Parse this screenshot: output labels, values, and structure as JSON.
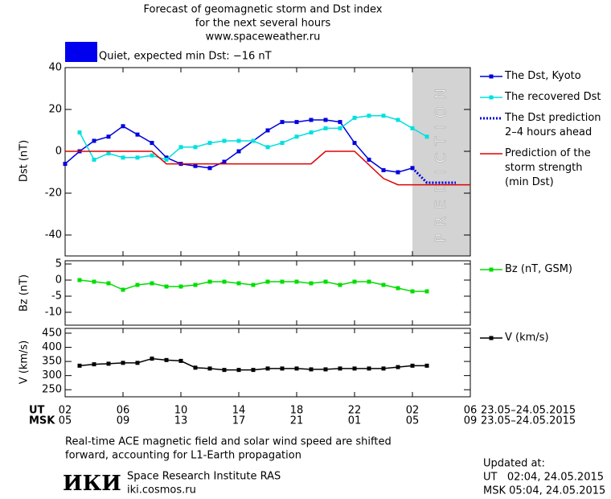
{
  "header": {
    "title": [
      "Forecast of geomagnetic storm and Dst index",
      "for the next several hours",
      "www.spaceweather.ru"
    ],
    "status": "Quiet, expected min Dst: −16 nT",
    "status_color": "#0000ee"
  },
  "chart_data": [
    {
      "type": "line",
      "ylabel": "Dst (nT)",
      "xlim": [
        0,
        28
      ],
      "ylim": [
        -50,
        40
      ],
      "yticks": [
        -40,
        -20,
        0,
        20,
        40
      ],
      "prediction_zone": {
        "xlim": [
          24,
          28
        ],
        "label": "PREDICTION",
        "color": "#d3d3d3"
      },
      "series": [
        {
          "name": "The Dst, Kyoto",
          "color": "#0000dd",
          "marker": "square",
          "x": [
            0,
            1,
            2,
            3,
            4,
            5,
            6,
            7,
            8,
            9,
            10,
            11,
            12,
            13,
            14,
            15,
            16,
            17,
            18,
            19,
            20,
            21,
            22,
            23,
            24
          ],
          "values": [
            -6,
            0,
            5,
            7,
            12,
            8,
            4,
            -3,
            -6,
            -7,
            -8,
            -5,
            0,
            5,
            10,
            14,
            14,
            15,
            15,
            14,
            4,
            -4,
            -9,
            -10,
            -8
          ]
        },
        {
          "name": "The recovered Dst",
          "color": "#00e0e0",
          "marker": "square",
          "x": [
            1,
            2,
            3,
            4,
            5,
            6,
            7,
            8,
            9,
            10,
            11,
            12,
            13,
            14,
            15,
            16,
            17,
            18,
            19,
            20,
            21,
            22,
            23,
            24,
            25
          ],
          "values": [
            9,
            -4,
            -1,
            -3,
            -3,
            -2,
            -4,
            2,
            2,
            4,
            5,
            5,
            5,
            2,
            4,
            7,
            9,
            11,
            11,
            16,
            17,
            17,
            15,
            11,
            7
          ]
        },
        {
          "name": "The Dst prediction\n2–4 hours ahead",
          "color": "#0000dd",
          "dash": "dotted",
          "x": [
            24,
            25,
            26,
            27
          ],
          "values": [
            -8,
            -15,
            -15,
            -15
          ]
        },
        {
          "name": "Prediction of the\nstorm strength\n(min Dst)",
          "color": "#e00000",
          "x": [
            0,
            6,
            7,
            17,
            18,
            20,
            22,
            23,
            28
          ],
          "values": [
            0,
            0,
            -6,
            -6,
            0,
            0,
            -13,
            -16,
            -16
          ]
        }
      ]
    },
    {
      "type": "line",
      "ylabel": "Bz (nT)",
      "xlim": [
        0,
        28
      ],
      "ylim": [
        -14,
        6
      ],
      "yticks": [
        -10,
        -5,
        0,
        5
      ],
      "series": [
        {
          "name": "Bz (nT, GSM)",
          "color": "#00dd00",
          "marker": "square",
          "x": [
            1,
            2,
            3,
            4,
            5,
            6,
            7,
            8,
            9,
            10,
            11,
            12,
            13,
            14,
            15,
            16,
            17,
            18,
            19,
            20,
            21,
            22,
            23,
            24,
            25
          ],
          "values": [
            0,
            -0.5,
            -1,
            -3,
            -1.5,
            -1,
            -2,
            -2,
            -1.5,
            -0.5,
            -0.5,
            -1,
            -1.5,
            -0.5,
            -0.5,
            -0.5,
            -1,
            -0.5,
            -1.5,
            -0.5,
            -0.5,
            -1.5,
            -2.5,
            -3.5,
            -3.5
          ]
        }
      ]
    },
    {
      "type": "line",
      "ylabel": "V (km/s)",
      "xlim": [
        0,
        28
      ],
      "ylim": [
        225,
        467
      ],
      "yticks": [
        250,
        300,
        350,
        400,
        450
      ],
      "xticks": [
        {
          "value": 0,
          "label": "02"
        },
        {
          "value": 4,
          "label": "06"
        },
        {
          "value": 8,
          "label": "10"
        },
        {
          "value": 12,
          "label": "14"
        },
        {
          "value": 16,
          "label": "18"
        },
        {
          "value": 20,
          "label": "22"
        },
        {
          "value": 24,
          "label": "02"
        },
        {
          "value": 28,
          "label": "06"
        }
      ],
      "xtick_labels_msk": [
        "05",
        "09",
        "13",
        "17",
        "21",
        "01",
        "05",
        "09"
      ],
      "xrow_labels": [
        "UT",
        "MSK"
      ],
      "date_range": "23.05–24.05.2015",
      "series": [
        {
          "name": "V (km/s)",
          "color": "#000000",
          "marker": "square",
          "x": [
            1,
            2,
            3,
            4,
            5,
            6,
            7,
            8,
            9,
            10,
            11,
            12,
            13,
            14,
            15,
            16,
            17,
            18,
            19,
            20,
            21,
            22,
            23,
            24,
            25
          ],
          "values": [
            335,
            340,
            342,
            345,
            345,
            360,
            355,
            352,
            328,
            325,
            320,
            320,
            320,
            325,
            325,
            325,
            322,
            322,
            325,
            325,
            325,
            325,
            330,
            335,
            335
          ]
        }
      ]
    }
  ],
  "footer": {
    "note": [
      "Real-time ACE magnetic field and solar wind speed are shifted",
      "forward, accounting for L1-Earth propagation"
    ],
    "logo": "ИКИ",
    "institute": "Space Research Institute RAS",
    "site": "iki.cosmos.ru",
    "updated": [
      "Updated at:",
      "UT   02:04, 24.05.2015",
      "MSK 05:04, 24.05.2015"
    ]
  }
}
